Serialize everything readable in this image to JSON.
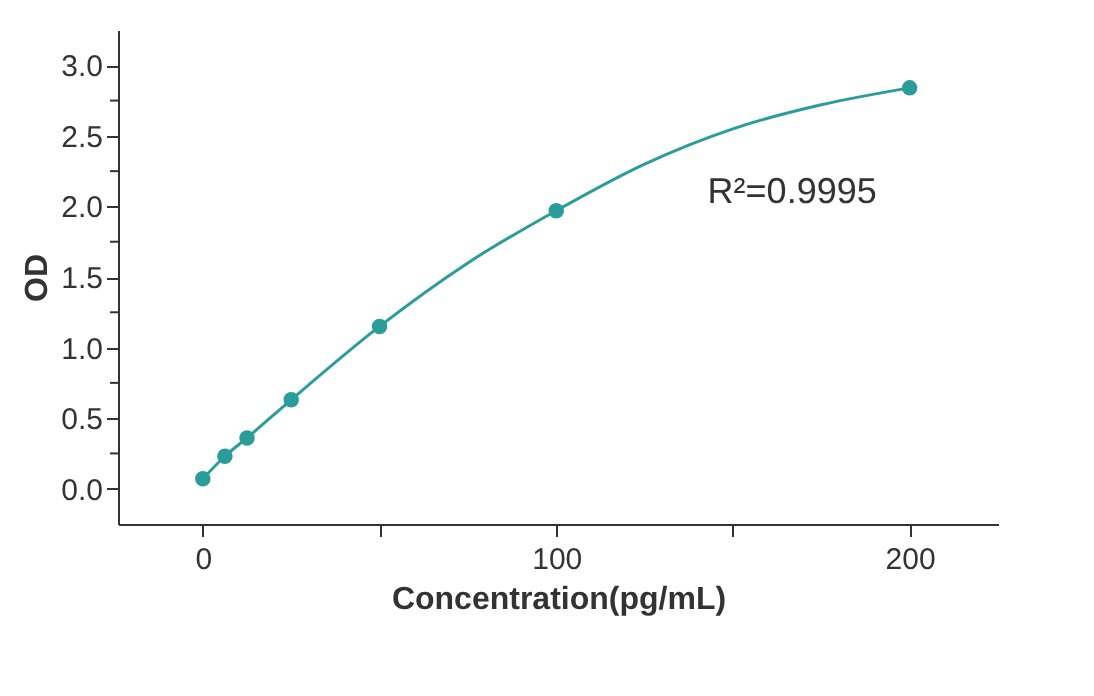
{
  "chart_data": {
    "type": "scatter",
    "xlabel": "Concentration(pg/mL)",
    "ylabel": "OD",
    "annotations": [
      "R²=0.9995"
    ],
    "xlim": [
      -24,
      225
    ],
    "ylim": [
      -0.25,
      3.25
    ],
    "xticks": [
      0,
      {
        "value": 50,
        "label": null
      },
      100,
      {
        "value": 150,
        "label": null
      },
      200
    ],
    "yticks": [
      {
        "value": 0,
        "label": "0.0"
      },
      {
        "value": 0.25,
        "label": null
      },
      0.5,
      {
        "value": 0.75,
        "label": null
      },
      {
        "value": 1,
        "label": "1.0"
      },
      {
        "value": 1.25,
        "label": null
      },
      1.5,
      {
        "value": 1.75,
        "label": null
      },
      {
        "value": 2,
        "label": "2.0"
      },
      {
        "value": 2.25,
        "label": null
      },
      2.5,
      {
        "value": 2.75,
        "label": null
      },
      {
        "value": 3,
        "label": "3.0"
      }
    ],
    "grid": false,
    "legend": false,
    "marker": "circle",
    "series": [
      {
        "type": "line",
        "color": "#2a9d9a",
        "x": [
          0,
          6.25,
          12.5,
          25,
          50,
          75,
          100,
          125,
          150,
          175,
          200
        ],
        "values": [
          0.07,
          0.23,
          0.36,
          0.63,
          1.15,
          1.6,
          1.97,
          2.3,
          2.55,
          2.72,
          2.84
        ],
        "line_style": "solid",
        "marker": "none"
      },
      {
        "color": "#2a9d9a",
        "x": [
          0,
          6.25,
          12.5,
          25,
          50,
          100,
          200
        ],
        "values": [
          0.07,
          0.23,
          0.36,
          0.63,
          1.15,
          1.97,
          2.84
        ]
      }
    ]
  }
}
